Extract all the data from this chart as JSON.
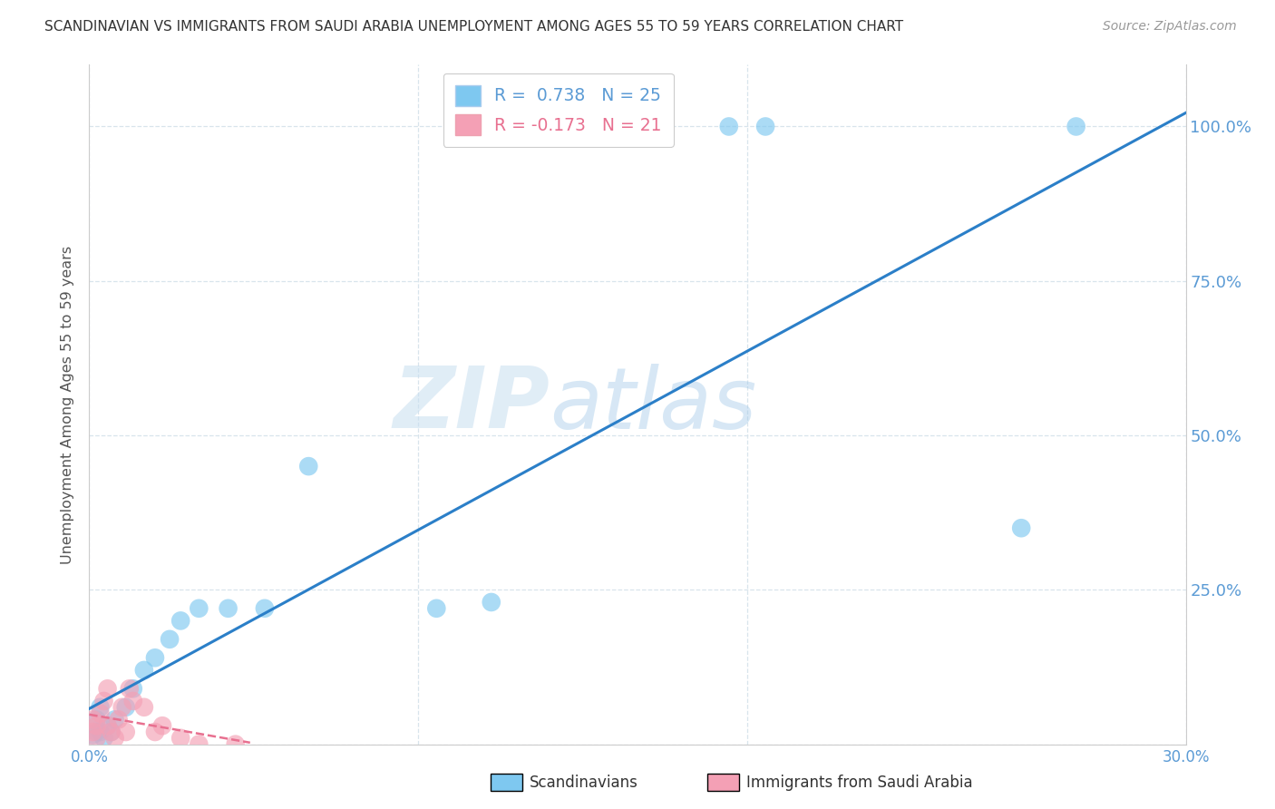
{
  "title": "SCANDINAVIAN VS IMMIGRANTS FROM SAUDI ARABIA UNEMPLOYMENT AMONG AGES 55 TO 59 YEARS CORRELATION CHART",
  "source": "Source: ZipAtlas.com",
  "ylabel": "Unemployment Among Ages 55 to 59 years",
  "xlim": [
    0.0,
    0.3
  ],
  "ylim": [
    0.0,
    1.1
  ],
  "ytick_values": [
    0.0,
    0.25,
    0.5,
    0.75,
    1.0
  ],
  "xtick_labels": [
    "0.0%",
    "30.0%"
  ],
  "xtick_values": [
    0.0,
    0.3
  ],
  "right_ytick_labels": [
    "100.0%",
    "75.0%",
    "50.0%",
    "25.0%"
  ],
  "right_ytick_values": [
    1.0,
    0.75,
    0.5,
    0.25
  ],
  "scandinavian_color": "#7ec8f0",
  "saudi_color": "#f4a0b5",
  "trend_blue": "#2b7fc8",
  "trend_pink": "#e87090",
  "R_scand": 0.738,
  "N_scand": 25,
  "R_saudi": -0.173,
  "N_saudi": 21,
  "watermark_zip": "ZIP",
  "watermark_atlas": "atlas",
  "scand_x": [
    0.001,
    0.002,
    0.002,
    0.003,
    0.003,
    0.004,
    0.005,
    0.006,
    0.007,
    0.01,
    0.012,
    0.015,
    0.018,
    0.022,
    0.025,
    0.03,
    0.038,
    0.048,
    0.06,
    0.095,
    0.11,
    0.175,
    0.185,
    0.255,
    0.27
  ],
  "scand_y": [
    0.015,
    0.02,
    0.04,
    0.02,
    0.06,
    0.01,
    0.03,
    0.02,
    0.04,
    0.06,
    0.09,
    0.12,
    0.14,
    0.17,
    0.2,
    0.22,
    0.22,
    0.22,
    0.45,
    0.22,
    0.23,
    1.0,
    1.0,
    0.35,
    1.0
  ],
  "saudi_x": [
    0.001,
    0.001,
    0.002,
    0.002,
    0.003,
    0.004,
    0.005,
    0.005,
    0.006,
    0.007,
    0.008,
    0.009,
    0.01,
    0.011,
    0.012,
    0.015,
    0.018,
    0.02,
    0.025,
    0.03,
    0.04
  ],
  "saudi_y": [
    0.02,
    0.04,
    0.01,
    0.03,
    0.05,
    0.07,
    0.03,
    0.09,
    0.02,
    0.01,
    0.04,
    0.06,
    0.02,
    0.09,
    0.07,
    0.06,
    0.02,
    0.03,
    0.01,
    0.0,
    0.0
  ],
  "grid_color": "#d8e4ec",
  "spine_color": "#cccccc",
  "tick_label_color": "#5b9bd5",
  "ylabel_color": "#555555",
  "title_color": "#333333",
  "source_color": "#999999",
  "legend_text_blue": "#5b9bd5",
  "legend_text_pink": "#e87090"
}
